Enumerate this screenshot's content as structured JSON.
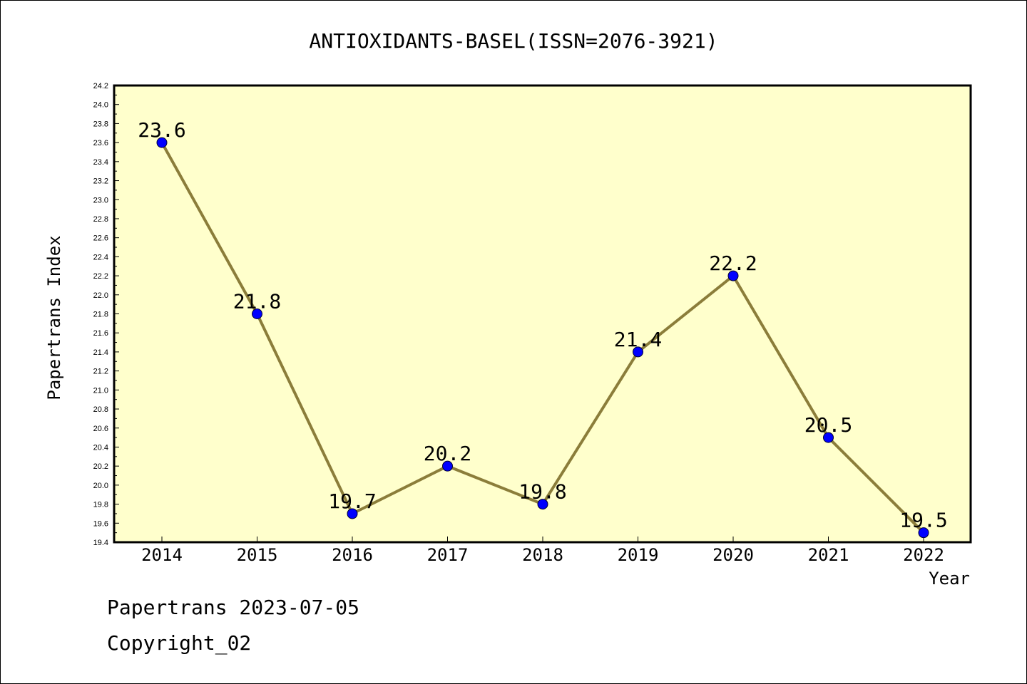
{
  "chart_data": {
    "type": "line",
    "title": "ANTIOXIDANTS-BASEL(ISSN=2076-3921)",
    "xlabel": "Year",
    "ylabel": "Papertrans Index",
    "categories": [
      "2014",
      "2015",
      "2016",
      "2017",
      "2018",
      "2019",
      "2020",
      "2021",
      "2022"
    ],
    "series": [
      {
        "values": [
          23.6,
          21.8,
          19.7,
          20.2,
          19.8,
          21.4,
          22.2,
          20.5,
          19.5
        ],
        "labels": [
          "23.6",
          "21.8",
          "19.7",
          "20.2",
          "19.8",
          "21.4",
          "22.2",
          "20.5",
          "19.5"
        ]
      }
    ],
    "ylim": [
      19.4,
      24.2
    ],
    "yticks": [
      "19.4",
      "19.6",
      "19.8",
      "20.0",
      "20.2",
      "20.4",
      "20.6",
      "20.8",
      "21.0",
      "21.2",
      "21.4",
      "21.6",
      "21.8",
      "22.0",
      "22.2",
      "22.4",
      "22.6",
      "22.8",
      "23.0",
      "23.2",
      "23.4",
      "23.6",
      "23.8",
      "24.0",
      "24.2"
    ],
    "grid": false,
    "colors": {
      "plot_background": "#ffffcc",
      "line": "#8b7d3a",
      "marker": "#0000ff"
    }
  },
  "footer": {
    "line1": "Papertrans 2023-07-05",
    "line2": "Copyright_02"
  }
}
